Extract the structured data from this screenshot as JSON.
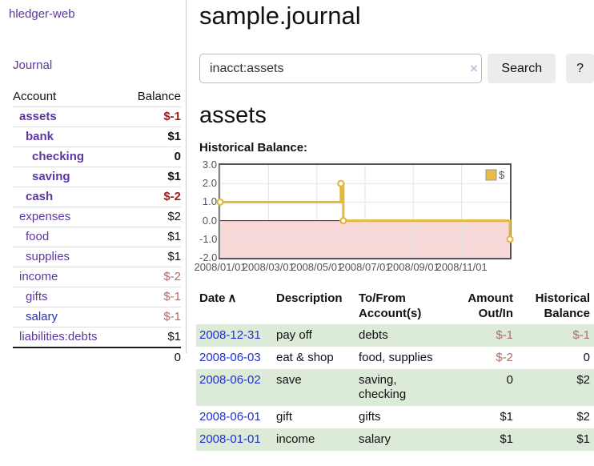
{
  "app": {
    "brand": "hledger-web"
  },
  "nav": {
    "journal": "Journal"
  },
  "sidebar": {
    "account_col": "Account",
    "balance_col": "Balance",
    "accounts": [
      {
        "name": "assets",
        "balance": "$-1"
      },
      {
        "name": "bank",
        "balance": "$1"
      },
      {
        "name": "checking",
        "balance": "0"
      },
      {
        "name": "saving",
        "balance": "$1"
      },
      {
        "name": "cash",
        "balance": "$-2"
      },
      {
        "name": "expenses",
        "balance": "$2"
      },
      {
        "name": "food",
        "balance": "$1"
      },
      {
        "name": "supplies",
        "balance": "$1"
      },
      {
        "name": "income",
        "balance": "$-2"
      },
      {
        "name": "gifts",
        "balance": "$-1"
      },
      {
        "name": "salary",
        "balance": "$-1"
      },
      {
        "name": "liabilities:debts",
        "balance": "$1"
      }
    ],
    "total": "0"
  },
  "main": {
    "title": "sample.journal",
    "account_heading": "assets",
    "chart_label": "Historical Balance:"
  },
  "search": {
    "query": "inacct:assets",
    "clear_icon": "×",
    "search_button": "Search",
    "help_button": "?"
  },
  "chart_data": {
    "type": "line",
    "step": true,
    "title": "Historical Balance:",
    "grid": true,
    "legend_position": "top-right",
    "legend": [
      {
        "label": "$",
        "color": "#e6bc44"
      }
    ],
    "xlim": [
      0,
      12
    ],
    "ylim": [
      -2,
      3
    ],
    "y_ticks": [
      {
        "value": 3,
        "label": "3.0"
      },
      {
        "value": 2,
        "label": "2.0"
      },
      {
        "value": 1,
        "label": "1.0"
      },
      {
        "value": 0,
        "label": "0.0"
      },
      {
        "value": -1,
        "label": "-1.0"
      },
      {
        "value": -2,
        "label": "-2.0"
      }
    ],
    "x_ticks": [
      {
        "pos": 0,
        "label": "2008/01/01"
      },
      {
        "pos": 2,
        "label": "2008/03/01"
      },
      {
        "pos": 4,
        "label": "2008/05/01"
      },
      {
        "pos": 6,
        "label": "2008/07/01"
      },
      {
        "pos": 8,
        "label": "2008/09/01"
      },
      {
        "pos": 10,
        "label": "2008/11/01"
      }
    ],
    "series": [
      {
        "name": "$",
        "color": "#e3b83e",
        "points": [
          {
            "date": "2008-01-01",
            "x": 0,
            "y": 1
          },
          {
            "date": "2008-06-01",
            "x": 5,
            "y": 2
          },
          {
            "date": "2008-06-03",
            "x": 5.1,
            "y": 0
          },
          {
            "date": "2008-12-31",
            "x": 12,
            "y": -1
          }
        ]
      }
    ],
    "colors": {
      "negative_region": "#f9d8d8",
      "zero_line": "#7f0000",
      "grid": "#e3e3e3",
      "frame": "#555555"
    }
  },
  "register": {
    "columns": {
      "date": "Date",
      "description": "Description",
      "accounts": "To/From Account(s)",
      "amount": "Amount Out/In",
      "balance": "Historical Balance"
    },
    "sort_icon": "∧",
    "rows": [
      {
        "date": "2008-12-31",
        "description": "pay off",
        "accounts": "debts",
        "amount": "$-1",
        "balance": "$-1"
      },
      {
        "date": "2008-06-03",
        "description": "eat & shop",
        "accounts": "food, supplies",
        "amount": "$-2",
        "balance": "0"
      },
      {
        "date": "2008-06-02",
        "description": "save",
        "accounts": "saving, checking",
        "amount": "0",
        "balance": "$2"
      },
      {
        "date": "2008-06-01",
        "description": "gift",
        "accounts": "gifts",
        "amount": "$1",
        "balance": "$2"
      },
      {
        "date": "2008-01-01",
        "description": "income",
        "accounts": "salary",
        "amount": "$1",
        "balance": "$1"
      }
    ]
  }
}
